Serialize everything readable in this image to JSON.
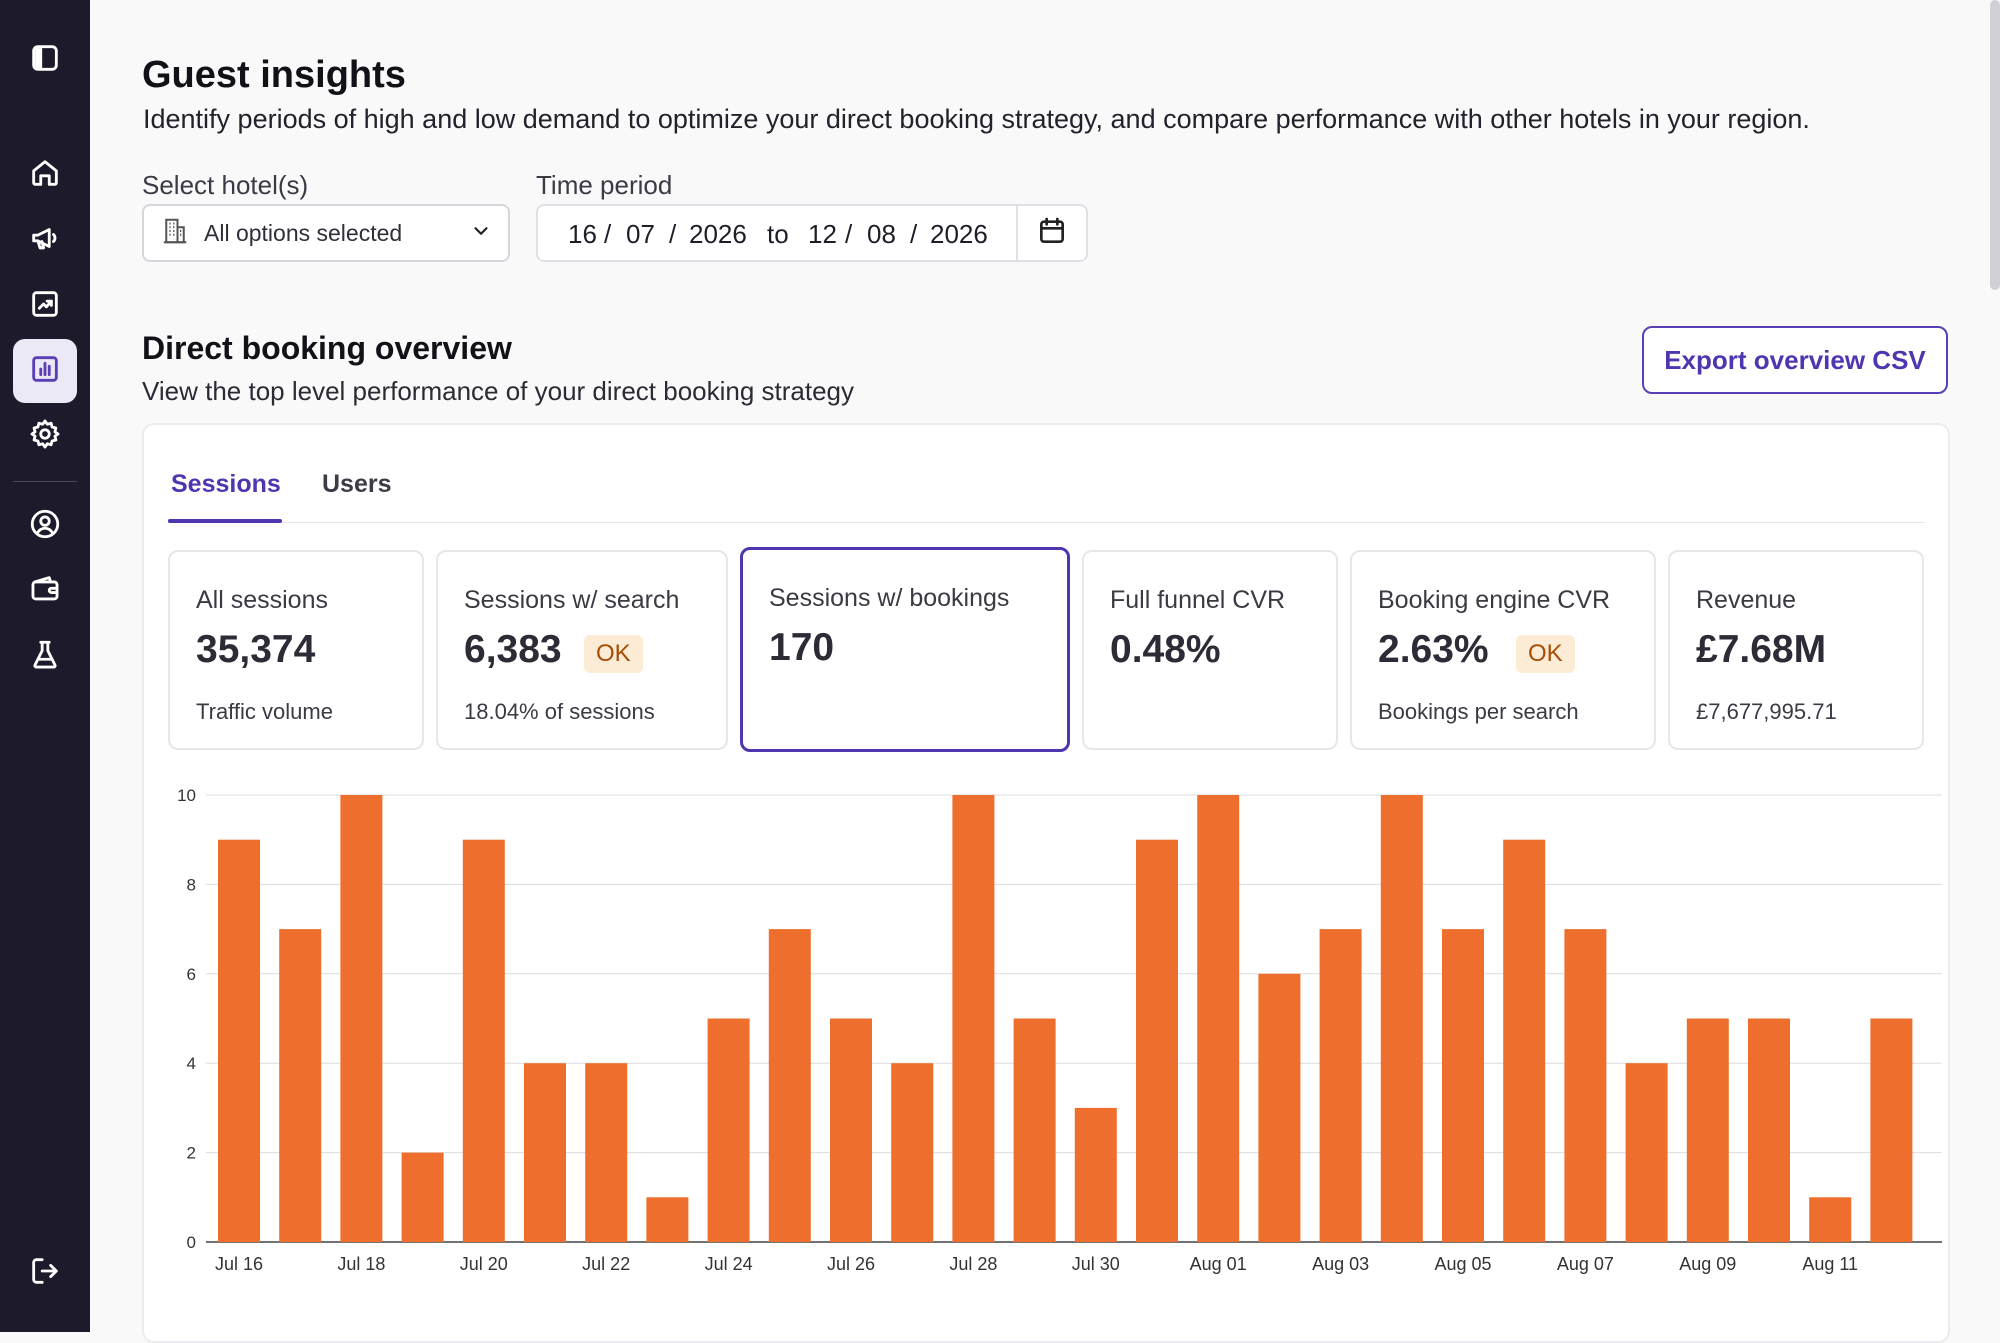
{
  "sidebar": {
    "items": [
      {
        "name": "sidebar-toggle",
        "icon": "panel-left-icon"
      },
      {
        "name": "home",
        "icon": "home-icon"
      },
      {
        "name": "campaigns",
        "icon": "megaphone-icon"
      },
      {
        "name": "trends",
        "icon": "trending-chart-icon"
      },
      {
        "name": "insights",
        "icon": "bar-chart-icon",
        "active": true
      },
      {
        "name": "settings",
        "icon": "gear-icon"
      },
      {
        "name": "account",
        "icon": "user-circle-icon"
      },
      {
        "name": "wallet",
        "icon": "wallet-icon"
      },
      {
        "name": "experiments",
        "icon": "flask-icon"
      },
      {
        "name": "logout",
        "icon": "logout-icon"
      }
    ]
  },
  "header": {
    "title": "Guest insights",
    "subtitle": "Identify periods of high and low demand to optimize your direct booking strategy, and compare performance with other hotels in your region."
  },
  "filters": {
    "hotel_label": "Select hotel(s)",
    "hotel_value": "All options selected",
    "period_label": "Time period",
    "start": {
      "day": "16",
      "month": "07",
      "year": "2026"
    },
    "to_label": "to",
    "end": {
      "day": "12",
      "month": "08",
      "year": "2026"
    },
    "separator": "/"
  },
  "overview": {
    "title": "Direct booking overview",
    "subtitle": "View the top level performance of your direct booking strategy",
    "export_label": "Export overview CSV"
  },
  "tabs": [
    {
      "label": "Sessions",
      "active": true
    },
    {
      "label": "Users",
      "active": false
    }
  ],
  "metrics": [
    {
      "label": "All sessions",
      "value": "35,374",
      "badge": "",
      "sub": "Traffic volume",
      "selected": false
    },
    {
      "label": "Sessions w/ search",
      "value": "6,383",
      "badge": "OK",
      "sub": "18.04% of sessions",
      "selected": false
    },
    {
      "label": "Sessions w/ bookings",
      "value": "170",
      "badge": "",
      "sub": "",
      "selected": true
    },
    {
      "label": "Full funnel CVR",
      "value": "0.48%",
      "badge": "",
      "sub": "",
      "selected": false
    },
    {
      "label": "Booking engine CVR",
      "value": "2.63%",
      "badge": "OK",
      "sub": "Bookings per search",
      "selected": false
    },
    {
      "label": "Revenue",
      "value": "£7.68M",
      "badge": "",
      "sub": "£7,677,995.71",
      "selected": false
    }
  ],
  "colors": {
    "accent": "#4f36b0",
    "bar": "#ee6f2d",
    "sidebar_bg": "#1d1a2c",
    "badge_bg": "#fdecd5",
    "badge_text": "#a84d06"
  },
  "chart_data": {
    "type": "bar",
    "categories": [
      "Jul 16",
      "Jul 17",
      "Jul 18",
      "Jul 19",
      "Jul 20",
      "Jul 21",
      "Jul 22",
      "Jul 23",
      "Jul 24",
      "Jul 25",
      "Jul 26",
      "Jul 27",
      "Jul 28",
      "Jul 29",
      "Jul 30",
      "Jul 31",
      "Aug 01",
      "Aug 02",
      "Aug 03",
      "Aug 04",
      "Aug 05",
      "Aug 06",
      "Aug 07",
      "Aug 08",
      "Aug 09",
      "Aug 10",
      "Aug 11",
      "Aug 12"
    ],
    "tick_labels": [
      "Jul 16",
      "Jul 18",
      "Jul 20",
      "Jul 22",
      "Jul 24",
      "Jul 26",
      "Jul 28",
      "Jul 30",
      "Aug 01",
      "Aug 03",
      "Aug 05",
      "Aug 07",
      "Aug 09",
      "Aug 11"
    ],
    "values": [
      9,
      7,
      10,
      2,
      9,
      4,
      4,
      1,
      5,
      7,
      5,
      4,
      10,
      5,
      3,
      9,
      10,
      6,
      7,
      10,
      7,
      9,
      7,
      4,
      5,
      5,
      1,
      5
    ],
    "ylim": [
      0,
      10
    ],
    "yticks": [
      0,
      2,
      4,
      6,
      8,
      10
    ],
    "grid": true,
    "title": "",
    "xlabel": "",
    "ylabel": ""
  }
}
